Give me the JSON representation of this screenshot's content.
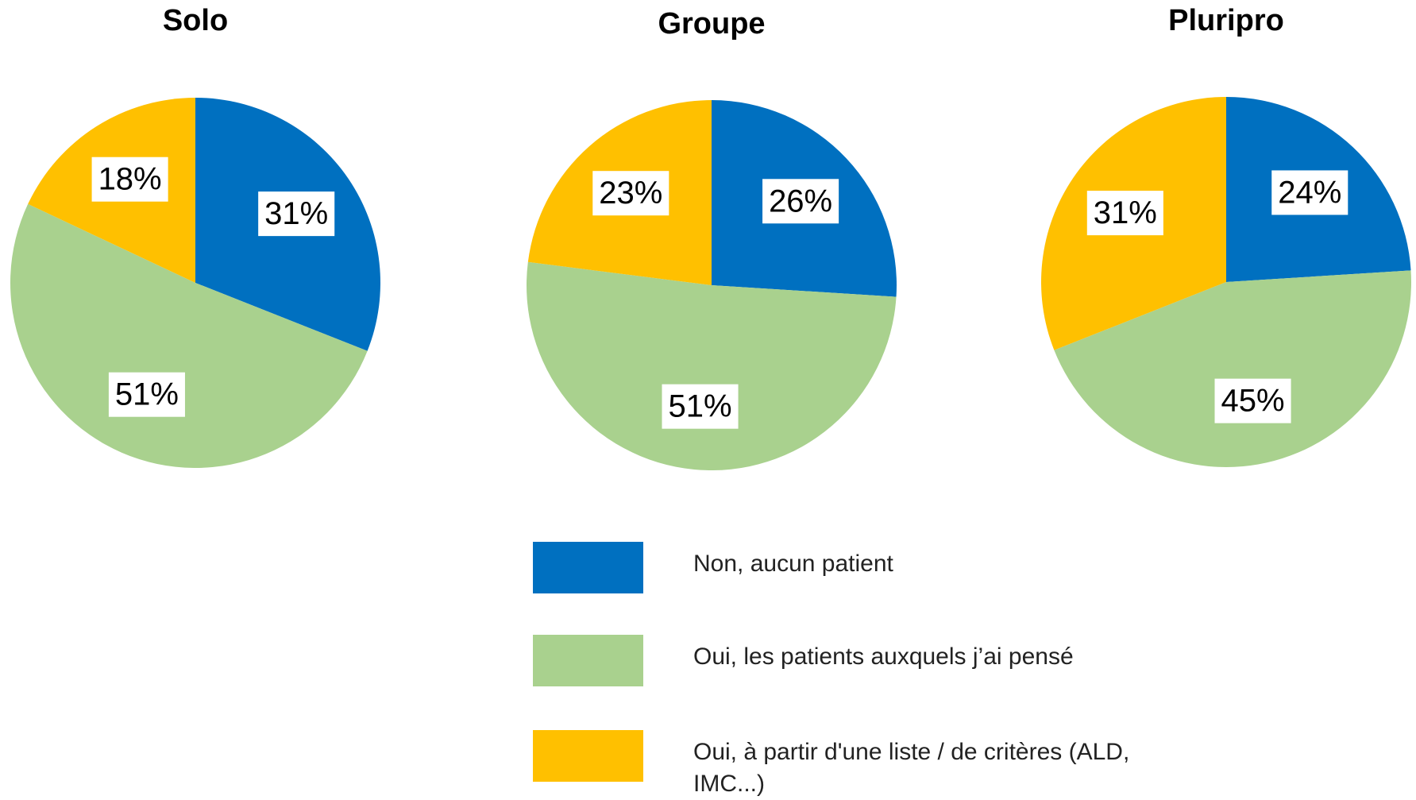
{
  "chart_data": [
    {
      "type": "pie",
      "title": "Solo",
      "values": [
        31,
        51,
        18
      ],
      "value_labels": [
        "31%",
        "51%",
        "18%"
      ]
    },
    {
      "type": "pie",
      "title": "Groupe",
      "values": [
        26,
        51,
        23
      ],
      "value_labels": [
        "26%",
        "51%",
        "23%"
      ]
    },
    {
      "type": "pie",
      "title": "Pluripro",
      "values": [
        24,
        45,
        31
      ],
      "value_labels": [
        "24%",
        "45%",
        "31%"
      ]
    }
  ],
  "legend": {
    "categories": [
      "Non, aucun patient",
      "Oui, les patients auxquels j’ai pensé",
      "Oui, à partir d'une liste / de critères (ALD, IMC...)"
    ],
    "colors": [
      "#0070c0",
      "#a9d18e",
      "#ffc000"
    ]
  }
}
